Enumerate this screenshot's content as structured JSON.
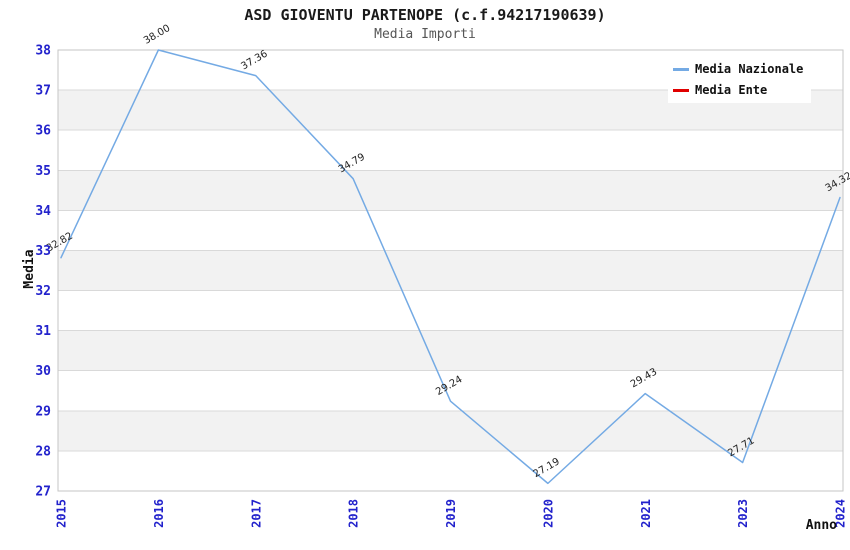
{
  "chart_data": {
    "type": "line",
    "title": "ASD GIOVENTU PARTENOPE (c.f.94217190639)",
    "subtitle": "Media Importi",
    "xlabel": "Anno",
    "ylabel": "Media",
    "categories": [
      "2015",
      "2016",
      "2017",
      "2018",
      "2019",
      "2020",
      "2021",
      "2023",
      "2024"
    ],
    "series": [
      {
        "name": "Media Nazionale",
        "color": "#74AAE4",
        "values": [
          32.82,
          38.0,
          37.36,
          34.79,
          29.24,
          27.19,
          29.43,
          27.71,
          34.32
        ]
      },
      {
        "name": "Media Ente",
        "color": "#E00000",
        "values": []
      }
    ],
    "point_labels": [
      "32.82",
      "38.00",
      "37.36",
      "34.79",
      "29.24",
      "27.19",
      "29.43",
      "27.71",
      "34.32"
    ],
    "ylim": [
      27,
      38
    ],
    "ytick_step": 1,
    "grid": true,
    "band_stripes": true,
    "legend_position": "top-right"
  },
  "colors": {
    "tick_label": "#2222CC",
    "band": "#F2F2F2",
    "gridline": "#D9D9D9",
    "plot_border": "#C6C6C6",
    "title": "#1A1A1A",
    "subtitle": "#555555",
    "axis_title": "#111111",
    "point_label": "#222222",
    "background": "#FFFFFF"
  }
}
